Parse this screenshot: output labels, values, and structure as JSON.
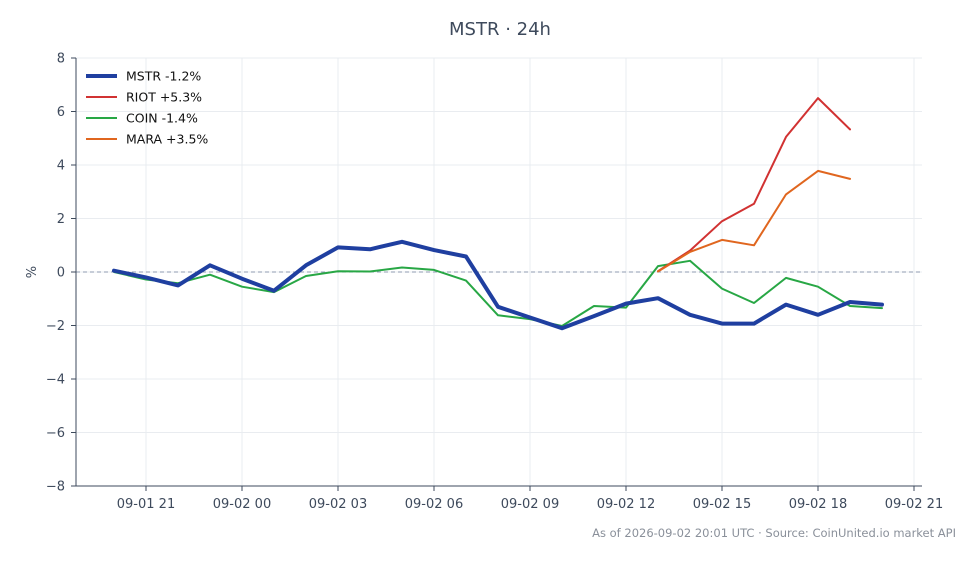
{
  "chart_data": {
    "type": "line",
    "title": "MSTR · 24h",
    "xlabel": "",
    "ylabel": "%",
    "ylim": [
      -8,
      8
    ],
    "yticks": [
      8,
      6,
      4,
      2,
      0,
      -2,
      -4,
      -6,
      -8
    ],
    "ytick_labels": [
      "8",
      "6",
      "4",
      "2",
      "0",
      "−2",
      "−4",
      "−6",
      "−8"
    ],
    "xticks": [
      "09-01 21",
      "09-02 00",
      "09-02 03",
      "09-02 06",
      "09-02 09",
      "09-02 12",
      "09-02 15",
      "09-02 18",
      "09-02 21"
    ],
    "x": [
      "09-01 20",
      "09-01 21",
      "09-01 22",
      "09-01 23",
      "09-02 00",
      "09-02 01",
      "09-02 02",
      "09-02 03",
      "09-02 04",
      "09-02 05",
      "09-02 06",
      "09-02 07",
      "09-02 08",
      "09-02 09",
      "09-02 10",
      "09-02 11",
      "09-02 12",
      "09-02 13",
      "09-02 14",
      "09-02 15",
      "09-02 16",
      "09-02 17",
      "09-02 18",
      "09-02 19",
      "09-02 20"
    ],
    "grid": true,
    "baseline": 0,
    "legend_position": "top-left",
    "series": [
      {
        "name": "MSTR -1.2%",
        "color": "#1f3fa0",
        "width": 4,
        "values": [
          0.05,
          -0.2,
          -0.5,
          0.25,
          -0.25,
          -0.7,
          0.25,
          0.92,
          0.85,
          1.13,
          0.82,
          0.58,
          -1.3,
          -1.7,
          -2.1,
          -1.65,
          -1.18,
          -0.98,
          -1.6,
          -1.93,
          -1.93,
          -1.22,
          -1.6,
          -1.12,
          -1.22
        ]
      },
      {
        "name": "RIOT +5.3%",
        "color": "#d13232",
        "width": 2,
        "values": [
          null,
          null,
          null,
          null,
          null,
          null,
          null,
          null,
          null,
          null,
          null,
          null,
          null,
          null,
          null,
          null,
          null,
          0.03,
          0.8,
          1.9,
          2.55,
          5.05,
          6.5,
          5.33,
          null
        ]
      },
      {
        "name": "COIN -1.4%",
        "color": "#28a745",
        "width": 2,
        "values": [
          0.0,
          -0.28,
          -0.42,
          -0.1,
          -0.55,
          -0.75,
          -0.15,
          0.03,
          0.02,
          0.17,
          0.08,
          -0.32,
          -1.62,
          -1.76,
          -2.02,
          -1.27,
          -1.33,
          0.22,
          0.42,
          -0.62,
          -1.16,
          -0.22,
          -0.55,
          -1.27,
          -1.35
        ]
      },
      {
        "name": "MARA +3.5%",
        "color": "#e0661f",
        "width": 2,
        "values": [
          null,
          null,
          null,
          null,
          null,
          null,
          null,
          null,
          null,
          null,
          null,
          null,
          null,
          null,
          null,
          null,
          null,
          0.02,
          0.75,
          1.2,
          1.0,
          2.9,
          3.78,
          3.48,
          null
        ]
      }
    ]
  },
  "footer": "As of 2026-09-02 20:01 UTC · Source: CoinUnited.io market API"
}
